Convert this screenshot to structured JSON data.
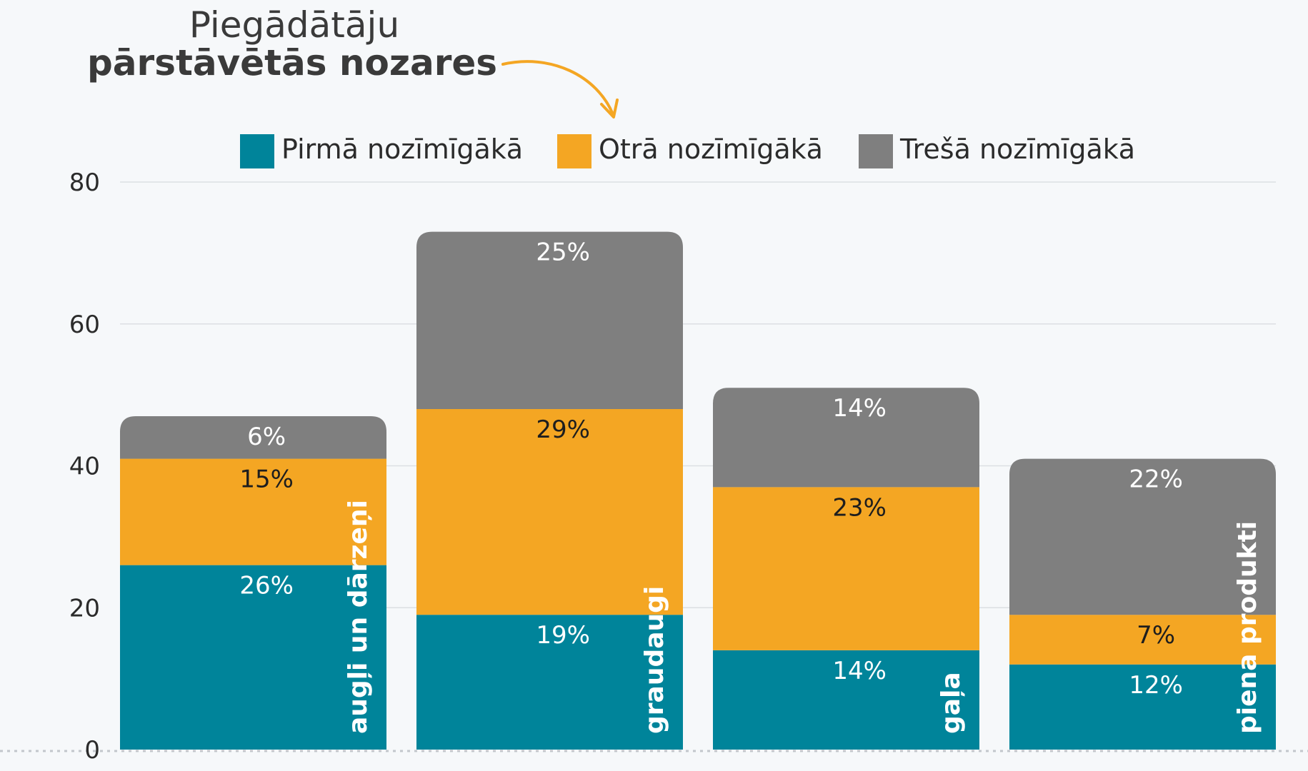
{
  "chart_data": {
    "type": "bar",
    "stacked": true,
    "title_line1": "Piegādātāju",
    "title_line2": "pārstāvētās nozares",
    "categories": [
      "augļi un dārzeņi",
      "graudaugi",
      "gaļa",
      "piena produkti"
    ],
    "series": [
      {
        "name": "Pirmā nozīmīgākā",
        "color": "#00849a",
        "label_color": "#ffffff",
        "values": [
          26,
          19,
          14,
          12
        ],
        "labels": [
          "26%",
          "19%",
          "14%",
          "12%"
        ]
      },
      {
        "name": "Otrā nozīmīgākā",
        "color": "#f4a623",
        "label_color": "#1e1e1e",
        "values": [
          15,
          29,
          23,
          7
        ],
        "labels": [
          "15%",
          "29%",
          "23%",
          "7%"
        ]
      },
      {
        "name": "Trešā nozīmīgākā",
        "color": "#7f7f7f",
        "label_color": "#ffffff",
        "values": [
          6,
          25,
          14,
          22
        ],
        "labels": [
          "6%",
          "25%",
          "14%",
          "22%"
        ]
      }
    ],
    "ylim": [
      0,
      80
    ],
    "yticks": [
      0,
      20,
      40,
      60,
      80
    ],
    "grid": true,
    "legend_position": "top",
    "arrow_color": "#f4a623"
  }
}
